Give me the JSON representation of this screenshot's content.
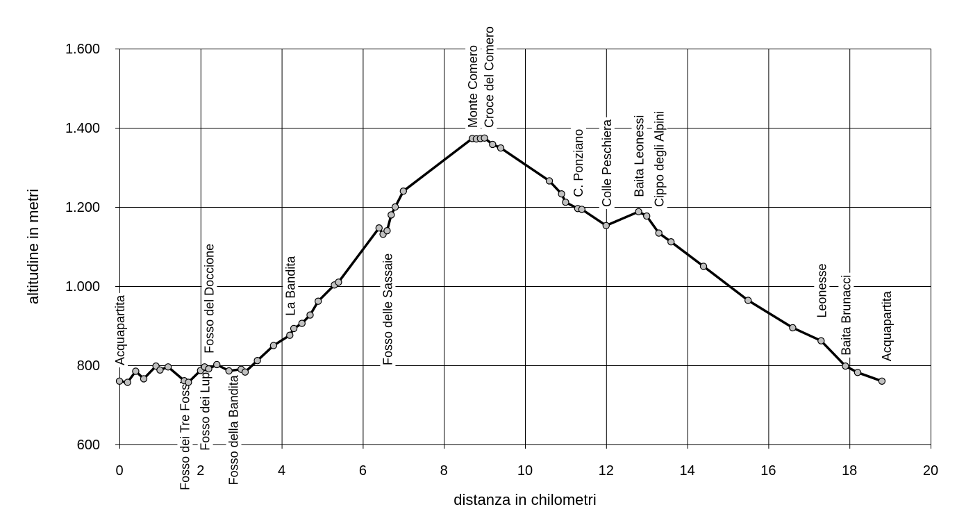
{
  "chart_data": {
    "type": "line",
    "title": "",
    "xlabel": "distanza in chilometri",
    "ylabel": "altitudine  in metri",
    "xlim": [
      0,
      20
    ],
    "ylim": [
      600,
      1600
    ],
    "xticks": [
      0,
      2,
      4,
      6,
      8,
      10,
      12,
      14,
      16,
      18,
      20
    ],
    "xtick_labels": [
      "0",
      "2",
      "4",
      "6",
      "8",
      "10",
      "12",
      "14",
      "16",
      "18",
      "20"
    ],
    "yticks": [
      600,
      800,
      1000,
      1200,
      1400,
      1600
    ],
    "ytick_labels": [
      "600",
      "800",
      "1.000",
      "1.200",
      "1.400",
      "1.600"
    ],
    "grid": true,
    "legend": "none",
    "series": [
      {
        "x": [
          0,
          0.2,
          0.4,
          0.6,
          0.9,
          1.0,
          1.2,
          1.6,
          1.7,
          2.0,
          2.1,
          2.2,
          2.4,
          2.7,
          3.0,
          3.1,
          3.4,
          3.8,
          4.2,
          4.3,
          4.5,
          4.7,
          4.9,
          5.3,
          5.4,
          6.4,
          6.5,
          6.6,
          6.7,
          6.8,
          7.0,
          8.7,
          8.8,
          8.9,
          9.0,
          9.2,
          9.4,
          10.6,
          10.9,
          11.0,
          11.3,
          11.4,
          12.0,
          12.8,
          13.0,
          13.3,
          13.6,
          14.4,
          15.5,
          16.6,
          17.3,
          17.9,
          18.2,
          18.8
        ],
        "values": [
          760,
          757,
          785,
          766,
          798,
          788,
          796,
          761,
          757,
          787,
          796,
          791,
          802,
          786,
          790,
          783,
          812,
          850,
          876,
          893,
          906,
          927,
          962,
          1003,
          1010,
          1147,
          1131,
          1140,
          1180,
          1200,
          1240,
          1373,
          1372,
          1373,
          1374,
          1358,
          1349,
          1266,
          1233,
          1212,
          1196,
          1194,
          1153,
          1188,
          1177,
          1134,
          1112,
          1050,
          964,
          895,
          862,
          798,
          782,
          760
        ]
      }
    ],
    "annotations": [
      {
        "text": "Acquapartita",
        "x": 0.0,
        "y": 800,
        "side": "above"
      },
      {
        "text": "Fosso dei Tre Fossi",
        "x": 1.6,
        "y": 760,
        "side": "below"
      },
      {
        "text": "Fosso dei Lupi",
        "x": 2.1,
        "y": 790,
        "side": "below"
      },
      {
        "text": "Fosso del Doccione",
        "x": 2.2,
        "y": 830,
        "side": "above"
      },
      {
        "text": "Fosso della Bandita",
        "x": 2.8,
        "y": 775,
        "side": "below"
      },
      {
        "text": "La Bandita",
        "x": 4.2,
        "y": 925,
        "side": "above"
      },
      {
        "text": "Fosso delle Sassaie",
        "x": 6.6,
        "y": 800,
        "side": "above"
      },
      {
        "text": "Monte Comero",
        "x": 8.7,
        "y": 1400,
        "side": "above"
      },
      {
        "text": "Croce del Comero",
        "x": 9.1,
        "y": 1400,
        "side": "above"
      },
      {
        "text": "C. Ponziano",
        "x": 11.3,
        "y": 1225,
        "side": "above"
      },
      {
        "text": "Colle Peschiera",
        "x": 12.0,
        "y": 1200,
        "side": "above"
      },
      {
        "text": "Baita Leonessi",
        "x": 12.8,
        "y": 1225,
        "side": "above"
      },
      {
        "text": "Cippo degli Alpini",
        "x": 13.3,
        "y": 1200,
        "side": "above"
      },
      {
        "text": "Leonesse",
        "x": 17.3,
        "y": 920,
        "side": "above"
      },
      {
        "text": "Baita Brunacci",
        "x": 17.9,
        "y": 825,
        "side": "above"
      },
      {
        "text": "Acquapartita",
        "x": 18.9,
        "y": 810,
        "side": "above"
      }
    ]
  }
}
